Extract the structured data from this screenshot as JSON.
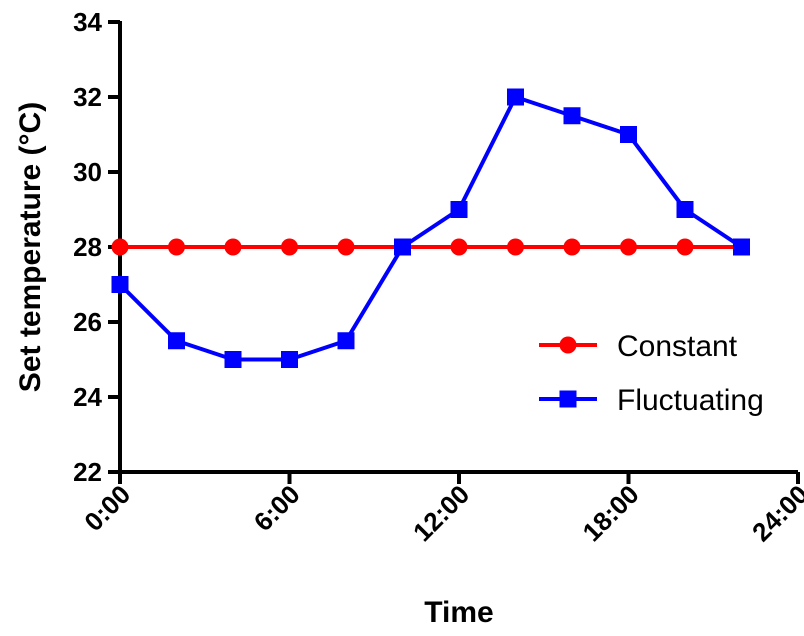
{
  "chart_data": {
    "type": "line",
    "title": "",
    "xlabel": "Time",
    "ylabel": "Set temperature (°C)",
    "x_ticks": [
      "0:00",
      "6:00",
      "12:00",
      "18:00",
      "24:00"
    ],
    "xlim": [
      0,
      24
    ],
    "x_tick_values": [
      0,
      6,
      12,
      18,
      24
    ],
    "ylim": [
      22,
      34
    ],
    "y_ticks": [
      22,
      24,
      26,
      28,
      30,
      32,
      34
    ],
    "grid": false,
    "legend_position": "right",
    "series": [
      {
        "name": "Constant",
        "color": "#ff0000",
        "marker": "circle",
        "x": [
          "0:00",
          "2:00",
          "4:00",
          "6:00",
          "8:00",
          "10:00",
          "12:00",
          "14:00",
          "16:00",
          "18:00",
          "20:00",
          "22:00"
        ],
        "values": [
          28,
          28,
          28,
          28,
          28,
          28,
          28,
          28,
          28,
          28,
          28,
          28
        ]
      },
      {
        "name": "Fluctuating",
        "color": "#0000ff",
        "marker": "square",
        "x": [
          "0:00",
          "2:00",
          "4:00",
          "6:00",
          "8:00",
          "10:00",
          "12:00",
          "14:00",
          "16:00",
          "18:00",
          "20:00",
          "22:00"
        ],
        "values": [
          27,
          25.5,
          25,
          25,
          25.5,
          28,
          29,
          32,
          31.5,
          31,
          29,
          28
        ]
      }
    ]
  }
}
